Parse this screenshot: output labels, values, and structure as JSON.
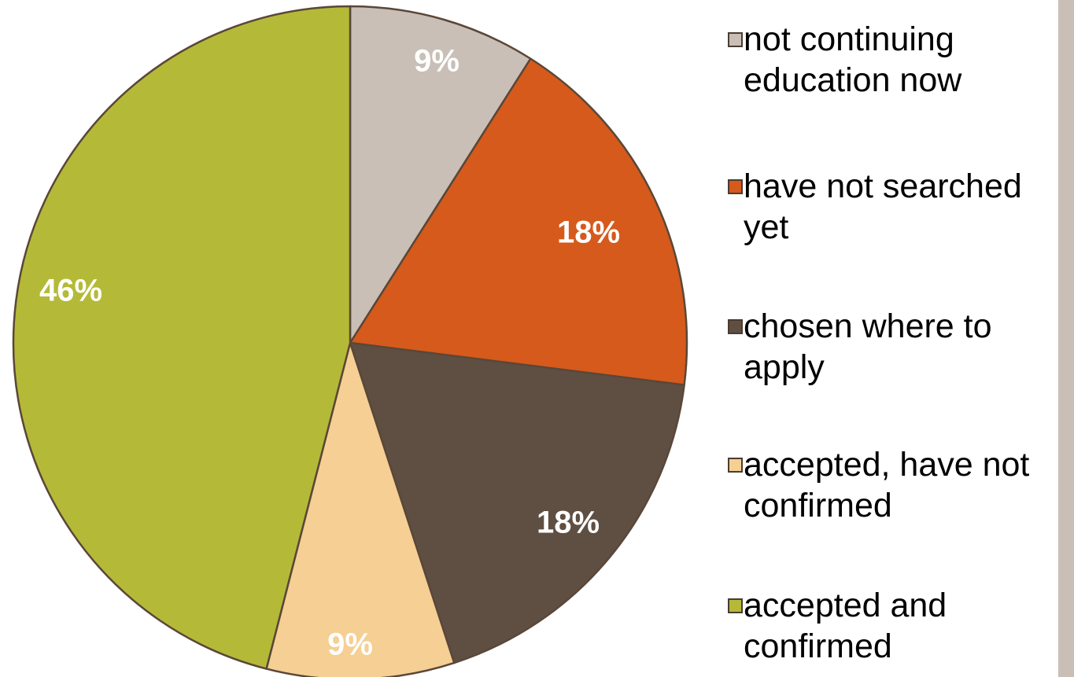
{
  "chart_data": {
    "type": "pie",
    "categories": [
      "not continuing education now",
      "have not searched yet",
      "chosen where to apply",
      "accepted, have not confirmed",
      "accepted and confirmed"
    ],
    "values": [
      9,
      18,
      18,
      9,
      46
    ],
    "value_labels": [
      "9%",
      "18%",
      "18%",
      "9%",
      "46%"
    ],
    "colors": [
      "#c9bfb6",
      "#d65a1b",
      "#5f4f42",
      "#f5cf93",
      "#b4ba37"
    ],
    "legend": "right"
  }
}
